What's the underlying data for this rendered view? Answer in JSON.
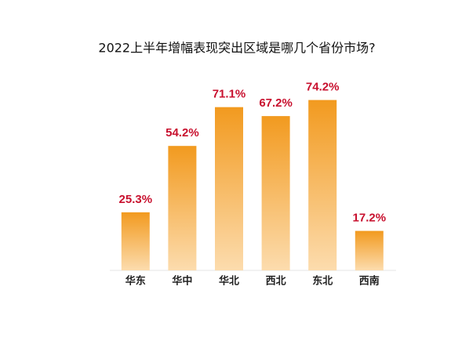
{
  "chart_data": {
    "type": "bar",
    "title": "2022上半年增幅表现突出区域是哪几个省份市场?",
    "categories": [
      "华东",
      "华中",
      "华北",
      "西北",
      "东北",
      "西南"
    ],
    "values": [
      25.3,
      54.2,
      71.1,
      67.2,
      74.2,
      17.2
    ],
    "value_labels": [
      "25.3%",
      "54.2%",
      "71.1%",
      "67.2%",
      "74.2%",
      "17.2%"
    ],
    "color": "#f29a1f",
    "label_color": "#c8102e"
  }
}
